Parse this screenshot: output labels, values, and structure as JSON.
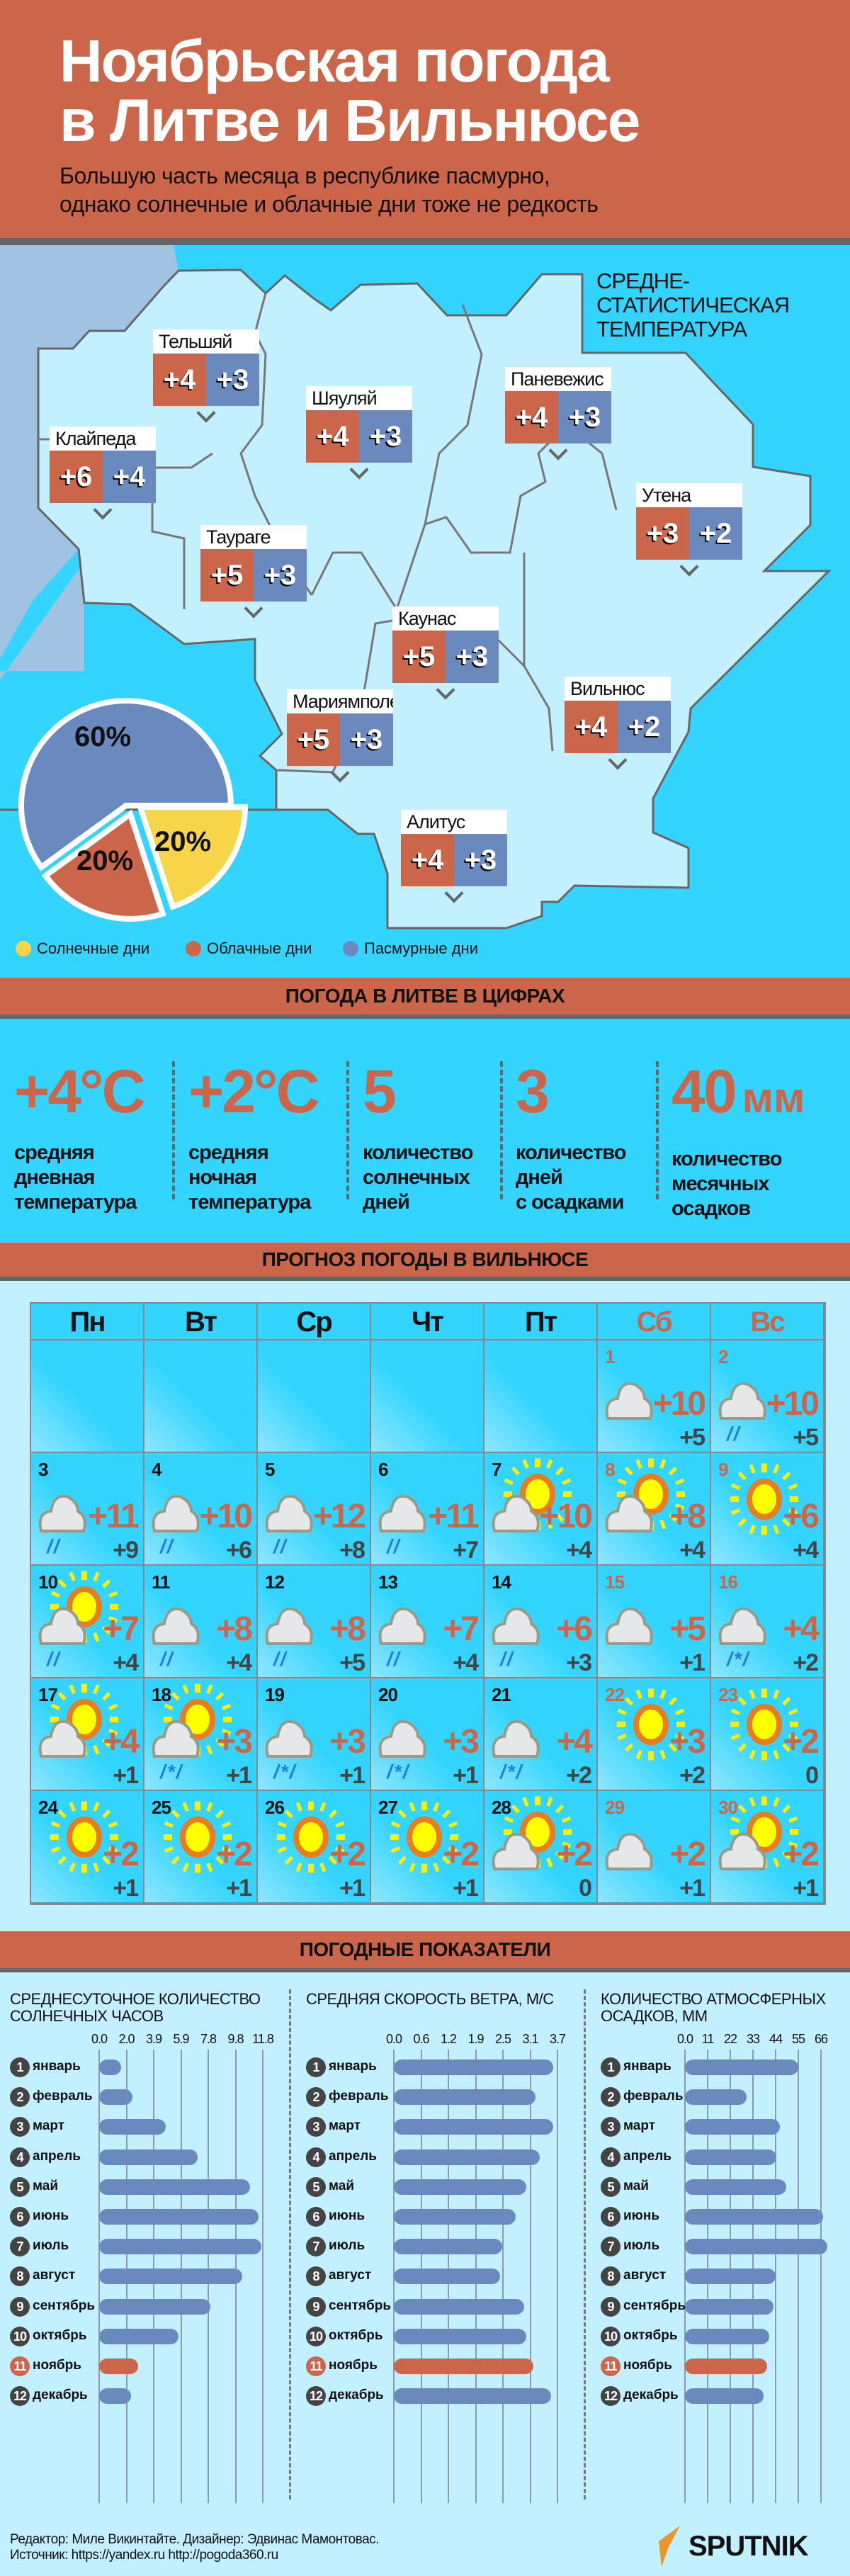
{
  "header": {
    "title": "Ноябрьская погода\nв Литве и Вильнюсе",
    "subtitle": "Большую часть месяца в республике пасмурно,\nоднако солнечные и облачные дни тоже не редкость"
  },
  "map": {
    "avg_label": "СРЕДНЕ-\nСТАТИСТИЧЕСКАЯ\nТЕМПЕРАТУРА",
    "cities": [
      {
        "name": "Тельшяй",
        "day": "+4",
        "night": "+3"
      },
      {
        "name": "Шяуляй",
        "day": "+4",
        "night": "+3"
      },
      {
        "name": "Клайпеда",
        "day": "+6",
        "night": "+4"
      },
      {
        "name": "Паневежис",
        "day": "+4",
        "night": "+3"
      },
      {
        "name": "Утена",
        "day": "+3",
        "night": "+2"
      },
      {
        "name": "Таураге",
        "day": "+5",
        "night": "+3"
      },
      {
        "name": "Каунас",
        "day": "+5",
        "night": "+3"
      },
      {
        "name": "Вильнюс",
        "day": "+4",
        "night": "+2"
      },
      {
        "name": "Мариямполе",
        "day": "+5",
        "night": "+3"
      },
      {
        "name": "Алитус",
        "day": "+4",
        "night": "+3"
      }
    ],
    "pie": [
      {
        "label": "Солнечные дни",
        "value": 20,
        "text": "20%",
        "color": "#f7d448"
      },
      {
        "label": "Облачные дни",
        "value": 20,
        "text": "20%",
        "color": "#cc664a"
      },
      {
        "label": "Пасмурные дни",
        "value": 60,
        "text": "60%",
        "color": "#6a8abf"
      }
    ]
  },
  "stats": {
    "title": "ПОГОДА В ЛИТВЕ В ЦИФРАХ",
    "items": [
      {
        "value": "+4°C",
        "unit": "",
        "label": "средняя\nдневная\nтемпература"
      },
      {
        "value": "+2°C",
        "unit": "",
        "label": "средняя\nночная\nтемпература"
      },
      {
        "value": "5",
        "unit": "",
        "label": "количество\nсолнечных\nдней"
      },
      {
        "value": "3",
        "unit": "",
        "label": "количество\nдней\nс осадками"
      },
      {
        "value": "40",
        "unit": "мм",
        "label": "количество\nмесячных\nосадков"
      }
    ]
  },
  "forecast": {
    "title": "ПРОГНОЗ ПОГОДЫ В ВИЛЬНЮСЕ",
    "weekdays": [
      "Пн",
      "Вт",
      "Ср",
      "Чт",
      "Пт",
      "Сб",
      "Вс"
    ],
    "leading_blank_days": 5,
    "days": [
      {
        "d": "1",
        "icon": "cloud",
        "prec": "",
        "hi": "+10",
        "lo": "+5"
      },
      {
        "d": "2",
        "icon": "cloud",
        "prec": "//",
        "hi": "+10",
        "lo": "+5"
      },
      {
        "d": "3",
        "icon": "cloud",
        "prec": "//",
        "hi": "+11",
        "lo": "+9"
      },
      {
        "d": "4",
        "icon": "cloud",
        "prec": "//",
        "hi": "+10",
        "lo": "+6"
      },
      {
        "d": "5",
        "icon": "cloud",
        "prec": "//",
        "hi": "+12",
        "lo": "+8"
      },
      {
        "d": "6",
        "icon": "cloud",
        "prec": "//",
        "hi": "+11",
        "lo": "+7"
      },
      {
        "d": "7",
        "icon": "partly",
        "prec": "",
        "hi": "+10",
        "lo": "+4"
      },
      {
        "d": "8",
        "icon": "partly",
        "prec": "",
        "hi": "+8",
        "lo": "+4"
      },
      {
        "d": "9",
        "icon": "sun",
        "prec": "",
        "hi": "+6",
        "lo": "+4"
      },
      {
        "d": "10",
        "icon": "partly",
        "prec": "//",
        "hi": "+7",
        "lo": "+4"
      },
      {
        "d": "11",
        "icon": "cloud",
        "prec": "//",
        "hi": "+8",
        "lo": "+4"
      },
      {
        "d": "12",
        "icon": "cloud",
        "prec": "//",
        "hi": "+8",
        "lo": "+5"
      },
      {
        "d": "13",
        "icon": "cloud",
        "prec": "//",
        "hi": "+7",
        "lo": "+4"
      },
      {
        "d": "14",
        "icon": "cloud",
        "prec": "//",
        "hi": "+6",
        "lo": "+3"
      },
      {
        "d": "15",
        "icon": "cloud",
        "prec": "",
        "hi": "+5",
        "lo": "+1"
      },
      {
        "d": "16",
        "icon": "cloud",
        "prec": "/*/",
        "hi": "+4",
        "lo": "+2"
      },
      {
        "d": "17",
        "icon": "partly",
        "prec": "",
        "hi": "+4",
        "lo": "+1"
      },
      {
        "d": "18",
        "icon": "partly",
        "prec": "/*/",
        "hi": "+3",
        "lo": "+1"
      },
      {
        "d": "19",
        "icon": "cloud",
        "prec": "/*/",
        "hi": "+3",
        "lo": "+1"
      },
      {
        "d": "20",
        "icon": "cloud",
        "prec": "/*/",
        "hi": "+3",
        "lo": "+1"
      },
      {
        "d": "21",
        "icon": "cloud",
        "prec": "/*/",
        "hi": "+4",
        "lo": "+2"
      },
      {
        "d": "22",
        "icon": "sun",
        "prec": "",
        "hi": "+3",
        "lo": "+2"
      },
      {
        "d": "23",
        "icon": "sun",
        "prec": "",
        "hi": "+2",
        "lo": "0"
      },
      {
        "d": "24",
        "icon": "sun",
        "prec": "",
        "hi": "+2",
        "lo": "+1"
      },
      {
        "d": "25",
        "icon": "sun",
        "prec": "",
        "hi": "+2",
        "lo": "+1"
      },
      {
        "d": "26",
        "icon": "sun",
        "prec": "",
        "hi": "+2",
        "lo": "+1"
      },
      {
        "d": "27",
        "icon": "sun",
        "prec": "",
        "hi": "+2",
        "lo": "+1"
      },
      {
        "d": "28",
        "icon": "partly",
        "prec": "",
        "hi": "+2",
        "lo": "0"
      },
      {
        "d": "29",
        "icon": "cloud",
        "prec": "",
        "hi": "+2",
        "lo": "+1"
      },
      {
        "d": "30",
        "icon": "partly",
        "prec": "",
        "hi": "+2",
        "lo": "+1"
      }
    ]
  },
  "indicators": {
    "title": "ПОГОДНЫЕ ПОКАЗАТЕЛИ"
  },
  "chart_data": [
    {
      "type": "bar",
      "orientation": "horizontal",
      "title": "СРЕДНЕСУТОЧНОЕ КОЛИЧЕСТВО\nСОЛНЕЧНЫХ ЧАСОВ",
      "ticks": [
        "0.0",
        "2.0",
        "3.9",
        "5.9",
        "7.8",
        "9.8",
        "11.8"
      ],
      "xlim": [
        0,
        11.8
      ],
      "grid": true,
      "highlight": "ноябрь",
      "categories": [
        "январь",
        "февраль",
        "март",
        "апрель",
        "май",
        "июнь",
        "июль",
        "август",
        "сентябрь",
        "октябрь",
        "ноябрь",
        "декабрь"
      ],
      "values": [
        1.6,
        2.4,
        4.8,
        7.1,
        10.9,
        11.5,
        11.7,
        10.3,
        8.0,
        5.7,
        2.8,
        2.3
      ]
    },
    {
      "type": "bar",
      "orientation": "horizontal",
      "title": "СРЕДНЯЯ СКОРОСТЬ ВЕТРА, М/С",
      "ticks": [
        "0.0",
        "0.6",
        "1.2",
        "1.9",
        "2.5",
        "3.1",
        "3.7"
      ],
      "xlim": [
        0,
        3.7
      ],
      "grid": true,
      "highlight": "ноябрь",
      "categories": [
        "январь",
        "февраль",
        "март",
        "апрель",
        "май",
        "июнь",
        "июль",
        "август",
        "сентябрь",
        "октябрь",
        "ноябрь",
        "декабрь"
      ],
      "values": [
        3.6,
        3.2,
        3.6,
        3.3,
        3.0,
        2.75,
        2.45,
        2.4,
        2.95,
        3.0,
        3.15,
        3.55
      ]
    },
    {
      "type": "bar",
      "orientation": "horizontal",
      "title": "КОЛИЧЕСТВО АТМОСФЕРНЫХ\nОСАДКОВ, ММ",
      "ticks": [
        "0.0",
        "11",
        "22",
        "33",
        "44",
        "55",
        "66"
      ],
      "xlim": [
        0,
        66
      ],
      "grid": true,
      "highlight": "ноябрь",
      "categories": [
        "январь",
        "февраль",
        "март",
        "апрель",
        "май",
        "июнь",
        "июль",
        "август",
        "сентябрь",
        "октябрь",
        "ноябрь",
        "декабрь"
      ],
      "values": [
        55,
        30,
        46,
        44.5,
        49,
        67,
        69,
        44,
        43,
        41,
        40,
        38
      ]
    }
  ],
  "footer": {
    "text": "Редактор: Миле Викинтайте.  Дизайнер: Эдвинас Мамонтовас.\nИсточник: https://yandex.ru  http://pogoda360.ru",
    "logo": "SPUTNIK"
  },
  "colors": {
    "accent": "#cc664a",
    "night": "#6a8abf",
    "sky": "#33d4ff",
    "land": "#c2f0ff",
    "sun": "#f7d448"
  }
}
